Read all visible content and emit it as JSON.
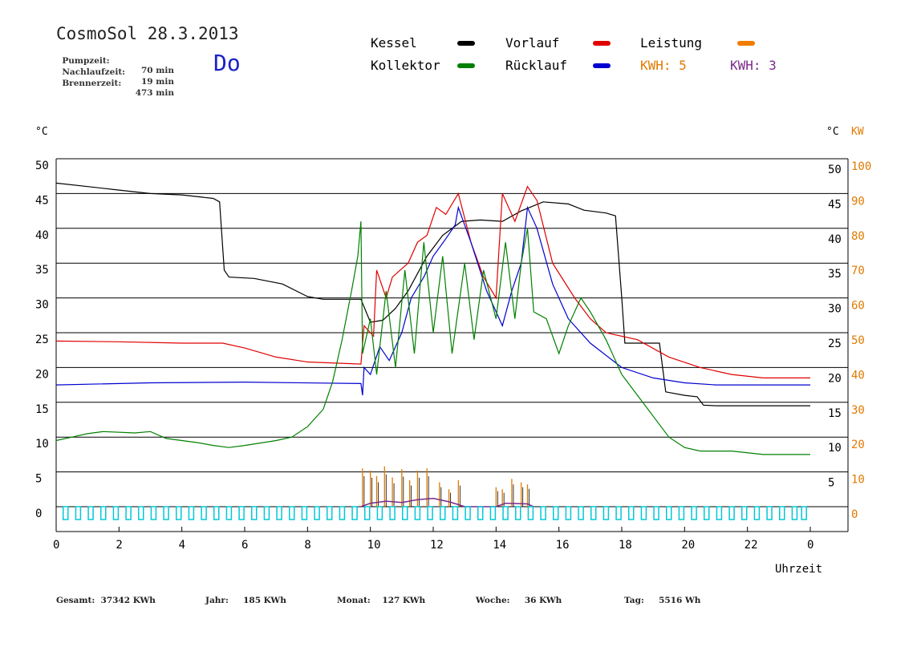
{
  "header": {
    "title": "CosmoSol 28.3.2013",
    "pumpzeit_label": "Pumpzeit:",
    "pumpzeit_value": "70 min",
    "nachlaufzeit_label": "Nachlaufzeit:",
    "nachlaufzeit_value": "19 min",
    "brennerzeit_label": "Brennerzeit:",
    "brennerzeit_value": "473 min",
    "day": "Do"
  },
  "legend": {
    "kessel": "Kessel",
    "vorlauf": "Vorlauf",
    "leistung": "Leistung",
    "kollektor": "Kollektor",
    "ruecklauf": "Rücklauf",
    "kwh1": "KWH: 5",
    "kwh2": "KWH: 3"
  },
  "colors": {
    "kessel": "#000000",
    "vorlauf": "#e00000",
    "leistung": "#f07c00",
    "kollektor": "#008000",
    "ruecklauf": "#0000d0",
    "kwh1": "#e07a00",
    "kwh2": "#7a2a8a",
    "pump": "#00c8d8"
  },
  "footer": {
    "gesamt_label": "Gesamt:",
    "gesamt_value": "37342 KWh",
    "jahr_label": "Jahr:",
    "jahr_value": "185 KWh",
    "monat_label": "Monat:",
    "monat_value": "127 KWh",
    "woche_label": "Woche:",
    "woche_value": "36 KWh",
    "tag_label": "Tag:",
    "tag_value": "5516 Wh"
  },
  "chart_data": {
    "type": "line",
    "xlabel": "Uhrzeit",
    "ylabel_left": "°C",
    "ylabel_right_c": "°C",
    "ylabel_right_kw": "KW",
    "xlim": [
      0,
      24
    ],
    "ylim": [
      0,
      50
    ],
    "ylim_right_kw": [
      0,
      100
    ],
    "x_ticks": [
      "0",
      "2",
      "4",
      "6",
      "8",
      "10",
      "12",
      "14",
      "16",
      "18",
      "20",
      "22",
      "0"
    ],
    "y_ticks_left": [
      "0",
      "5",
      "10",
      "15",
      "20",
      "25",
      "30",
      "35",
      "40",
      "45",
      "50"
    ],
    "y_ticks_right_c": [
      "5",
      "10",
      "15",
      "20",
      "25",
      "30",
      "35",
      "40",
      "45",
      "50"
    ],
    "y_ticks_right_kw": [
      "0",
      "10",
      "20",
      "30",
      "40",
      "50",
      "60",
      "70",
      "80",
      "90",
      "100"
    ],
    "grid": true,
    "series": [
      {
        "name": "Kessel",
        "key": "kessel",
        "points": [
          [
            0,
            46.5
          ],
          [
            1,
            46
          ],
          [
            2,
            45.5
          ],
          [
            3,
            45
          ],
          [
            4,
            44.8
          ],
          [
            5,
            44.3
          ],
          [
            5.2,
            43.8
          ],
          [
            5.35,
            34
          ],
          [
            5.5,
            33
          ],
          [
            6.3,
            32.8
          ],
          [
            7.2,
            32
          ],
          [
            8,
            30.2
          ],
          [
            8.5,
            29.8
          ],
          [
            9.7,
            29.8
          ],
          [
            10,
            26.5
          ],
          [
            10.4,
            26.8
          ],
          [
            10.8,
            28.5
          ],
          [
            11.2,
            31
          ],
          [
            11.8,
            36
          ],
          [
            12.3,
            39
          ],
          [
            12.9,
            41
          ],
          [
            13.5,
            41.2
          ],
          [
            14.2,
            41
          ],
          [
            14.8,
            42.5
          ],
          [
            15.5,
            43.8
          ],
          [
            16.3,
            43.5
          ],
          [
            16.8,
            42.6
          ],
          [
            17.5,
            42.2
          ],
          [
            17.8,
            41.8
          ],
          [
            18,
            30
          ],
          [
            18.1,
            23.5
          ],
          [
            18.5,
            23.5
          ],
          [
            19.2,
            23.5
          ],
          [
            19.4,
            16.5
          ],
          [
            20,
            16
          ],
          [
            20.4,
            15.8
          ],
          [
            20.6,
            14.6
          ],
          [
            21,
            14.5
          ],
          [
            22,
            14.5
          ],
          [
            24,
            14.5
          ]
        ]
      },
      {
        "name": "Vorlauf",
        "key": "vorlauf",
        "points": [
          [
            0,
            23.8
          ],
          [
            2,
            23.7
          ],
          [
            4,
            23.5
          ],
          [
            5.3,
            23.5
          ],
          [
            6,
            22.8
          ],
          [
            7,
            21.5
          ],
          [
            8,
            20.8
          ],
          [
            9.7,
            20.5
          ],
          [
            9.8,
            26
          ],
          [
            10.1,
            24.5
          ],
          [
            10.2,
            34
          ],
          [
            10.5,
            30
          ],
          [
            10.7,
            33
          ],
          [
            11.2,
            35
          ],
          [
            11.5,
            38
          ],
          [
            11.8,
            39
          ],
          [
            12.1,
            43
          ],
          [
            12.4,
            42
          ],
          [
            12.8,
            45
          ],
          [
            13.2,
            38
          ],
          [
            13.6,
            33
          ],
          [
            14,
            30
          ],
          [
            14.2,
            45
          ],
          [
            14.6,
            41
          ],
          [
            15,
            46
          ],
          [
            15.3,
            44
          ],
          [
            15.8,
            35
          ],
          [
            16.5,
            30
          ],
          [
            17,
            27
          ],
          [
            17.5,
            25
          ],
          [
            18.5,
            24
          ],
          [
            19.5,
            21.5
          ],
          [
            20.5,
            20
          ],
          [
            21.5,
            19
          ],
          [
            22.5,
            18.5
          ],
          [
            24,
            18.5
          ]
        ]
      },
      {
        "name": "Rücklauf",
        "key": "ruecklauf",
        "points": [
          [
            0,
            17.5
          ],
          [
            3,
            17.8
          ],
          [
            6,
            17.9
          ],
          [
            9.7,
            17.7
          ],
          [
            9.75,
            16
          ],
          [
            9.8,
            20
          ],
          [
            10,
            19
          ],
          [
            10.3,
            23
          ],
          [
            10.6,
            21
          ],
          [
            11,
            25
          ],
          [
            11.3,
            30
          ],
          [
            11.7,
            33
          ],
          [
            12,
            36
          ],
          [
            12.4,
            38.5
          ],
          [
            12.7,
            40.5
          ],
          [
            12.8,
            43
          ],
          [
            13.2,
            38
          ],
          [
            13.7,
            31
          ],
          [
            14.2,
            26
          ],
          [
            14.5,
            31
          ],
          [
            14.8,
            35
          ],
          [
            15,
            43
          ],
          [
            15.3,
            40
          ],
          [
            15.8,
            32
          ],
          [
            16.3,
            27
          ],
          [
            17,
            23.5
          ],
          [
            18,
            20
          ],
          [
            19,
            18.5
          ],
          [
            20,
            17.8
          ],
          [
            21,
            17.5
          ],
          [
            24,
            17.5
          ]
        ]
      },
      {
        "name": "Kollektor",
        "key": "kollektor",
        "points": [
          [
            0,
            9.5
          ],
          [
            0.5,
            10
          ],
          [
            1,
            10.5
          ],
          [
            1.5,
            10.8
          ],
          [
            2.5,
            10.6
          ],
          [
            3,
            10.8
          ],
          [
            3.5,
            9.8
          ],
          [
            4.5,
            9.2
          ],
          [
            5,
            8.8
          ],
          [
            5.5,
            8.5
          ],
          [
            6,
            8.8
          ],
          [
            7,
            9.5
          ],
          [
            7.5,
            10
          ],
          [
            8,
            11.5
          ],
          [
            8.5,
            14
          ],
          [
            8.8,
            18
          ],
          [
            9.1,
            24
          ],
          [
            9.4,
            31
          ],
          [
            9.6,
            36
          ],
          [
            9.7,
            41
          ],
          [
            9.75,
            22
          ],
          [
            10,
            27
          ],
          [
            10.2,
            19
          ],
          [
            10.5,
            31
          ],
          [
            10.8,
            20
          ],
          [
            11.1,
            34
          ],
          [
            11.4,
            22
          ],
          [
            11.7,
            38
          ],
          [
            12,
            25
          ],
          [
            12.3,
            36
          ],
          [
            12.6,
            22
          ],
          [
            13,
            35
          ],
          [
            13.3,
            24
          ],
          [
            13.6,
            34
          ],
          [
            14,
            27
          ],
          [
            14.3,
            38
          ],
          [
            14.6,
            27
          ],
          [
            14.8,
            35
          ],
          [
            15,
            40
          ],
          [
            15.2,
            28
          ],
          [
            15.6,
            27
          ],
          [
            16,
            22
          ],
          [
            16.3,
            26
          ],
          [
            16.7,
            30
          ],
          [
            17,
            28
          ],
          [
            17.5,
            24
          ],
          [
            18,
            19
          ],
          [
            18.5,
            16
          ],
          [
            19,
            13
          ],
          [
            19.5,
            10
          ],
          [
            20,
            8.5
          ],
          [
            20.5,
            8
          ],
          [
            21.5,
            8
          ],
          [
            22.5,
            7.5
          ],
          [
            24,
            7.5
          ]
        ]
      },
      {
        "name": "KWH: 5",
        "key": "kwh1",
        "bars": [
          [
            9.75,
            5.5
          ],
          [
            10,
            5.2
          ],
          [
            10.2,
            4.4
          ],
          [
            10.45,
            5.8
          ],
          [
            10.7,
            4.2
          ],
          [
            11,
            5.4
          ],
          [
            11.25,
            3.8
          ],
          [
            11.5,
            5.2
          ],
          [
            11.8,
            5.5
          ],
          [
            12.2,
            3.5
          ],
          [
            12.5,
            2.5
          ],
          [
            12.8,
            3.8
          ],
          [
            14,
            2.8
          ],
          [
            14.2,
            2.5
          ],
          [
            14.5,
            4
          ],
          [
            14.8,
            3.5
          ],
          [
            15,
            3.2
          ]
        ]
      },
      {
        "name": "KWH: 3",
        "key": "kwh2",
        "points": [
          [
            9.7,
            0
          ],
          [
            10,
            0.5
          ],
          [
            10.5,
            0.8
          ],
          [
            11,
            0.6
          ],
          [
            11.5,
            1
          ],
          [
            12,
            1.2
          ],
          [
            12.5,
            0.7
          ],
          [
            12.8,
            0.3
          ],
          [
            13,
            0
          ],
          [
            14,
            0
          ],
          [
            14.3,
            0.5
          ],
          [
            15,
            0.4
          ],
          [
            15.2,
            0
          ]
        ]
      }
    ],
    "pump_markers": [
      0.3,
      0.7,
      1.1,
      1.5,
      1.9,
      2.3,
      2.7,
      3.1,
      3.5,
      3.9,
      4.3,
      4.7,
      5.1,
      5.5,
      5.9,
      6.3,
      6.7,
      7.1,
      7.5,
      7.9,
      8.3,
      8.7,
      9.1,
      9.5,
      9.9,
      10.3,
      10.7,
      11.1,
      11.5,
      11.9,
      12.3,
      12.7,
      13.1,
      13.5,
      13.9,
      14.3,
      14.7,
      15.1,
      15.5,
      15.9,
      16.3,
      16.7,
      17.1,
      17.5,
      17.9,
      18.3,
      18.7,
      19.1,
      19.5,
      19.9,
      20.3,
      20.7,
      21.1,
      21.5,
      21.9,
      22.3,
      22.7,
      23.1,
      23.5,
      23.8
    ]
  }
}
